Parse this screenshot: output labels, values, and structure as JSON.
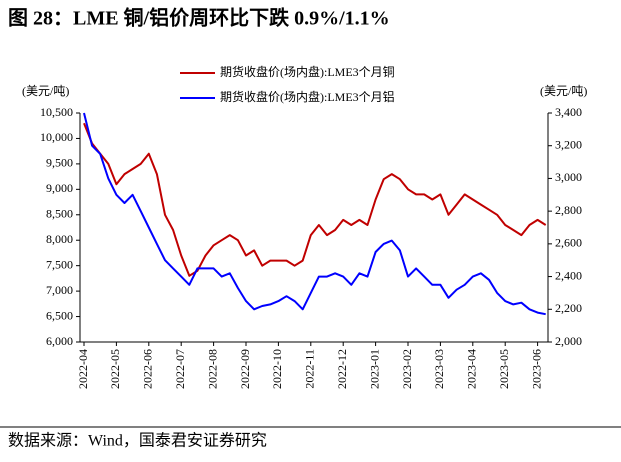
{
  "chart_data": {
    "type": "line",
    "title": "图 28：LME 铜/铝价周环比下跌 0.9%/1.1%",
    "ylabel": "(美元/吨)",
    "y2label": "(美元/吨)",
    "source": "数据来源：Wind，国泰君安证券研究",
    "legend": "top",
    "categories": [
      "2022-04",
      null,
      null,
      null,
      "2022-05",
      null,
      null,
      null,
      "2022-06",
      null,
      null,
      null,
      "2022-07",
      null,
      null,
      null,
      "2022-08",
      null,
      null,
      null,
      "2022-09",
      null,
      null,
      null,
      "2022-10",
      null,
      null,
      null,
      "2022-11",
      null,
      null,
      null,
      "2022-12",
      null,
      null,
      null,
      "2023-01",
      null,
      null,
      null,
      "2023-02",
      null,
      null,
      null,
      "2023-03",
      null,
      null,
      null,
      "2023-04",
      null,
      null,
      null,
      "2023-05",
      null,
      null,
      null,
      "2023-06",
      null
    ],
    "series": [
      {
        "name": "期货收盘价(场内盘):LME3个月铜",
        "color": "#c00000",
        "axis": "y",
        "values": [
          10300,
          9900,
          9700,
          9500,
          9100,
          9300,
          9400,
          9500,
          9700,
          9300,
          8500,
          8200,
          7700,
          7300,
          7400,
          7700,
          7900,
          8000,
          8100,
          8000,
          7700,
          7800,
          7500,
          7600,
          7600,
          7600,
          7500,
          7600,
          8100,
          8300,
          8100,
          8200,
          8400,
          8300,
          8400,
          8300,
          8800,
          9200,
          9300,
          9200,
          9000,
          8900,
          8900,
          8800,
          8900,
          8500,
          8700,
          8900,
          8800,
          8700,
          8600,
          8500,
          8300,
          8200,
          8100,
          8300,
          8400,
          8300
        ]
      },
      {
        "name": "期货收盘价(场内盘):LME3个月铝",
        "color": "#0000ff",
        "axis": "y2",
        "values": [
          3400,
          3200,
          3150,
          3000,
          2900,
          2850,
          2900,
          2800,
          2700,
          2600,
          2500,
          2450,
          2400,
          2350,
          2450,
          2450,
          2450,
          2400,
          2420,
          2330,
          2250,
          2200,
          2220,
          2230,
          2250,
          2280,
          2250,
          2200,
          2300,
          2400,
          2400,
          2420,
          2400,
          2350,
          2420,
          2400,
          2550,
          2600,
          2620,
          2560,
          2400,
          2450,
          2400,
          2350,
          2350,
          2270,
          2320,
          2350,
          2400,
          2420,
          2380,
          2300,
          2250,
          2230,
          2240,
          2200,
          2180,
          2170
        ]
      }
    ],
    "ylim": [
      6000,
      10500
    ],
    "yticks": [
      {
        "value": 6000,
        "label": "6,000"
      },
      {
        "value": 6500,
        "label": "6,500"
      },
      {
        "value": 7000,
        "label": "7,000"
      },
      {
        "value": 7500,
        "label": "7,500"
      },
      {
        "value": 8000,
        "label": "8,000"
      },
      {
        "value": 8500,
        "label": "8,500"
      },
      {
        "value": 9000,
        "label": "9,000"
      },
      {
        "value": 9500,
        "label": "9,500"
      },
      {
        "value": 10000,
        "label": "10,000"
      },
      {
        "value": 10500,
        "label": "10,500"
      }
    ],
    "y2lim": [
      2000,
      3400
    ],
    "y2ticks": [
      {
        "value": 2000,
        "label": "2,000"
      },
      {
        "value": 2200,
        "label": "2,200"
      },
      {
        "value": 2400,
        "label": "2,400"
      },
      {
        "value": 2600,
        "label": "2,600"
      },
      {
        "value": 2800,
        "label": "2,800"
      },
      {
        "value": 3000,
        "label": "3,000"
      },
      {
        "value": 3200,
        "label": "3,200"
      },
      {
        "value": 3400,
        "label": "3,400"
      }
    ],
    "grid": false
  }
}
